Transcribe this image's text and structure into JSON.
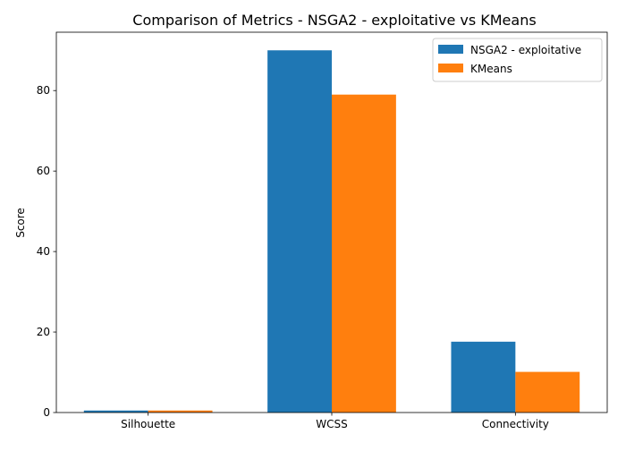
{
  "chart_data": {
    "type": "bar",
    "title": "Comparison of Metrics - NSGA2 - exploitative vs KMeans",
    "xlabel": "",
    "ylabel": "Score",
    "categories": [
      "Silhouette",
      "WCSS",
      "Connectivity"
    ],
    "series": [
      {
        "name": "NSGA2 - exploitative",
        "color": "#1f77b4",
        "values": [
          0.5,
          90,
          17.6
        ]
      },
      {
        "name": "KMeans",
        "color": "#ff7f0e",
        "values": [
          0.5,
          79,
          10.1
        ]
      }
    ],
    "ylim": [
      0,
      94.5
    ],
    "yticks": [
      0,
      20,
      40,
      60,
      80
    ],
    "grid": false,
    "legend_position": "top-right"
  }
}
